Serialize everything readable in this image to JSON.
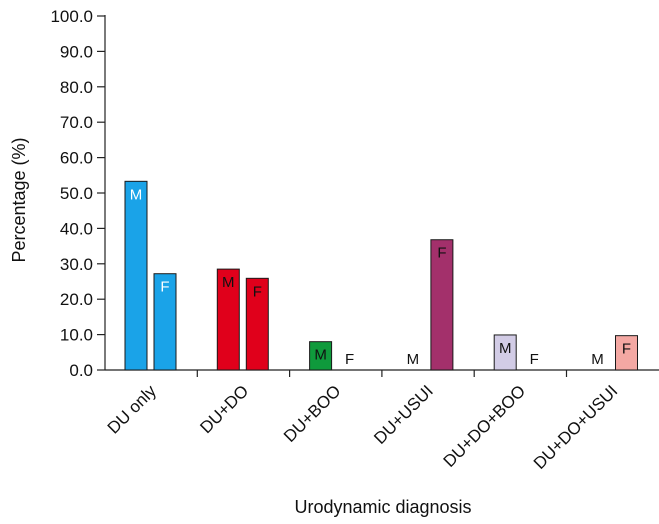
{
  "chart_data": {
    "type": "bar",
    "title": "",
    "xlabel": "Urodynamic diagnosis",
    "ylabel": "Percentage (%)",
    "ylim": [
      0,
      100
    ],
    "yticks": [
      "0.0",
      "10.0",
      "20.0",
      "30.0",
      "40.0",
      "50.0",
      "60.0",
      "70.0",
      "80.0",
      "90.0",
      "100.0"
    ],
    "grid": false,
    "legend": "none",
    "categories": [
      "DU only",
      "DU+DO",
      "DU+BOO",
      "DU+USUI",
      "DU+DO+BOO",
      "DU+DO+USUI"
    ],
    "category_colors": [
      "#1aa3e8",
      "#e0001b",
      "#0f9a3c",
      "#a3306b",
      "#d2cce6",
      "#f4a8a3"
    ],
    "series": [
      {
        "values": [
          53.3,
          28.5,
          8.0,
          0,
          9.9,
          0
        ],
        "bar_labels": [
          "M",
          "M",
          "M",
          "M",
          "M",
          "M"
        ],
        "label_colors": [
          "#ffffff",
          "#111111",
          "#111111",
          "#111111",
          "#111111",
          "#111111"
        ]
      },
      {
        "values": [
          27.2,
          25.9,
          0,
          36.8,
          0,
          9.7
        ],
        "bar_labels": [
          "F",
          "F",
          "F",
          "F",
          "F",
          "F"
        ],
        "label_colors": [
          "#ffffff",
          "#111111",
          "#111111",
          "#111111",
          "#111111",
          "#111111"
        ]
      }
    ]
  }
}
